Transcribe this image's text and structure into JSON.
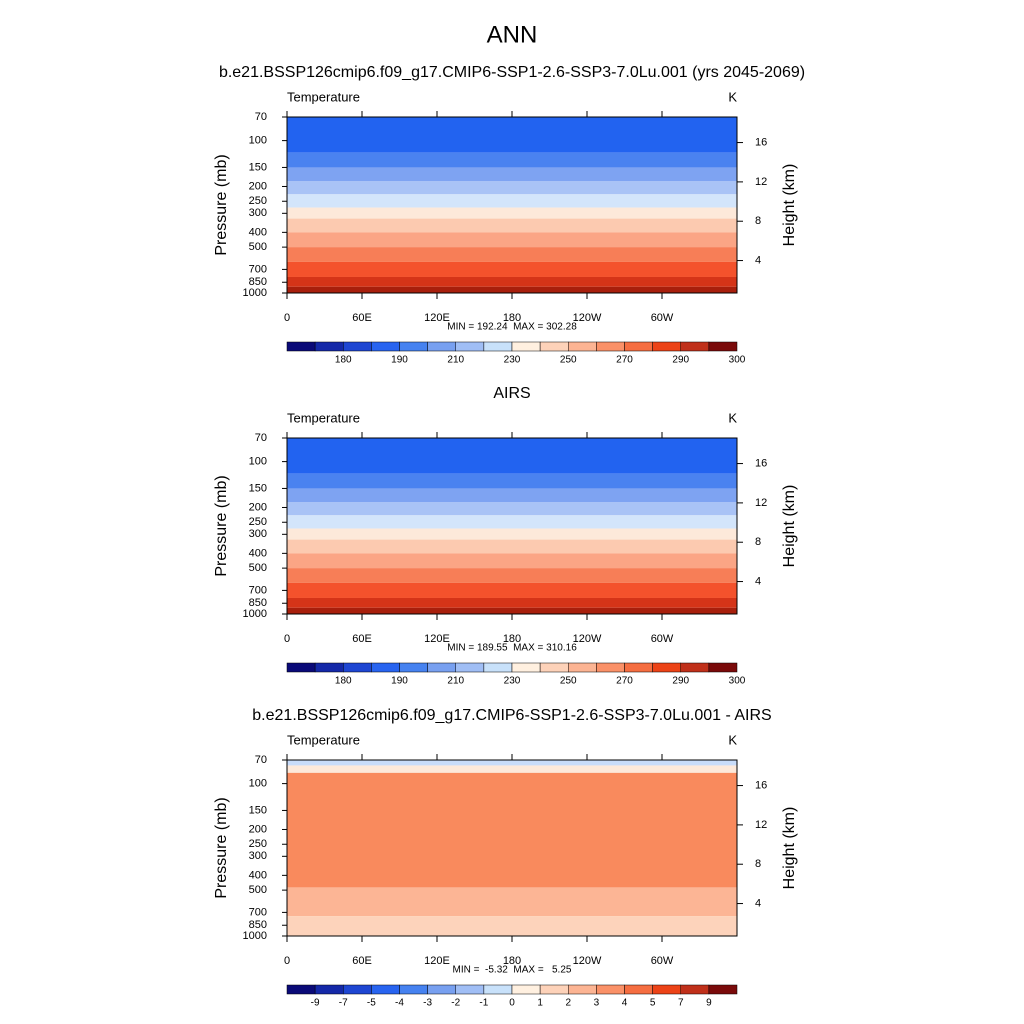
{
  "title": "ANN",
  "chart_data": [
    {
      "type": "contour",
      "title": "b.e21.BSSP126cmip6.f09_g17.CMIP6-SSP1-2.6-SSP3-7.0Lu.001 (yrs 2045-2069)",
      "left_label": "Temperature",
      "right_label": "K",
      "ylabel": "Pressure (mb)",
      "y2label": "Height (km)",
      "log_y": true,
      "ylim": [
        1000,
        70
      ],
      "yticks": [
        70,
        100,
        150,
        200,
        250,
        300,
        400,
        500,
        700,
        850,
        1000
      ],
      "y2lim": [
        0.7,
        18.6
      ],
      "y2ticks": [
        4,
        8,
        12,
        16
      ],
      "xlim": [
        0,
        360
      ],
      "xticks": [
        0,
        {
          "value": 60,
          "label": "60E"
        },
        {
          "value": 120,
          "label": "120E"
        },
        180,
        {
          "value": 240,
          "label": "120W"
        },
        {
          "value": 300,
          "label": "60W"
        }
      ],
      "stats": "MIN = 192.24  MAX = 302.28",
      "bands": {
        "edges": [
          120,
          150,
          185,
          225,
          275,
          325,
          400,
          500,
          625,
          785,
          910
        ],
        "colors": [
          "#2263f0",
          "#4a82f0",
          "#7ea3f2",
          "#a9c3f6",
          "#d3e5fb",
          "#fde9da",
          "#fccab0",
          "#fba585",
          "#f77e57",
          "#f4522c",
          "#d53418",
          "#a81f0c"
        ]
      },
      "colorbar": {
        "colors": [
          "#0a0a78",
          "#1428a8",
          "#1e46d2",
          "#2864f0",
          "#4682f0",
          "#78a0f0",
          "#a0bef5",
          "#c8e1fa",
          "#fff0e0",
          "#fdd2b9",
          "#fcb493",
          "#fa9168",
          "#f56e41",
          "#ec4317",
          "#c0301a",
          "#7a0a0a"
        ],
        "labels": [
          180,
          190,
          210,
          230,
          250,
          270,
          290,
          300
        ]
      }
    },
    {
      "type": "contour",
      "title": "AIRS",
      "left_label": "Temperature",
      "right_label": "K",
      "ylabel": "Pressure (mb)",
      "y2label": "Height (km)",
      "log_y": true,
      "ylim": [
        1000,
        70
      ],
      "yticks": [
        70,
        100,
        150,
        200,
        250,
        300,
        400,
        500,
        700,
        850,
        1000
      ],
      "y2lim": [
        0.7,
        18.6
      ],
      "y2ticks": [
        4,
        8,
        12,
        16
      ],
      "xlim": [
        0,
        360
      ],
      "xticks": [
        0,
        {
          "value": 60,
          "label": "60E"
        },
        {
          "value": 120,
          "label": "120E"
        },
        180,
        {
          "value": 240,
          "label": "120W"
        },
        {
          "value": 300,
          "label": "60W"
        }
      ],
      "stats": "MIN = 189.55  MAX = 310.16",
      "bands": {
        "edges": [
          120,
          150,
          185,
          225,
          275,
          325,
          400,
          500,
          625,
          785,
          910
        ],
        "colors": [
          "#2263f0",
          "#4a82f0",
          "#7ea3f2",
          "#a9c3f6",
          "#d3e5fb",
          "#fde9da",
          "#fccab0",
          "#fba585",
          "#f77e57",
          "#f4522c",
          "#d53418",
          "#a81f0c"
        ]
      },
      "colorbar": {
        "colors": [
          "#0a0a78",
          "#1428a8",
          "#1e46d2",
          "#2864f0",
          "#4682f0",
          "#78a0f0",
          "#a0bef5",
          "#c8e1fa",
          "#fff0e0",
          "#fdd2b9",
          "#fcb493",
          "#fa9168",
          "#f56e41",
          "#ec4317",
          "#c0301a",
          "#7a0a0a"
        ],
        "labels": [
          180,
          190,
          210,
          230,
          250,
          270,
          290,
          300
        ]
      }
    },
    {
      "type": "contour",
      "title": "b.e21.BSSP126cmip6.f09_g17.CMIP6-SSP1-2.6-SSP3-7.0Lu.001 - AIRS",
      "left_label": "Temperature",
      "right_label": "K",
      "ylabel": "Pressure (mb)",
      "y2label": "Height (km)",
      "log_y": true,
      "ylim": [
        1000,
        70
      ],
      "yticks": [
        70,
        100,
        150,
        200,
        250,
        300,
        400,
        500,
        700,
        850,
        1000
      ],
      "y2lim": [
        0.7,
        18.6
      ],
      "y2ticks": [
        4,
        8,
        12,
        16
      ],
      "xlim": [
        0,
        360
      ],
      "xticks": [
        0,
        {
          "value": 60,
          "label": "60E"
        },
        {
          "value": 120,
          "label": "120E"
        },
        180,
        {
          "value": 240,
          "label": "120W"
        },
        {
          "value": 300,
          "label": "60W"
        }
      ],
      "stats": "MIN =  -5.32  MAX =   5.25",
      "bands": {
        "edges": [
          76,
          85,
          480,
          740
        ],
        "colors": [
          "#c8dcfa",
          "#fde9da",
          "#f98a5d",
          "#fcb595",
          "#fdd3bb"
        ]
      },
      "colorbar": {
        "colors": [
          "#0a0a78",
          "#1428a8",
          "#1e46d2",
          "#2864f0",
          "#4682f0",
          "#78a0f0",
          "#a0bef5",
          "#c8e1fa",
          "#fff0e0",
          "#fdd2b9",
          "#fcb493",
          "#fa9168",
          "#f56e41",
          "#ec4317",
          "#c0301a",
          "#7a0a0a"
        ],
        "labels": [
          -9,
          -7,
          -5,
          -4,
          -3,
          -2,
          -1,
          0,
          1,
          2,
          3,
          4,
          5,
          7,
          9
        ]
      }
    }
  ]
}
